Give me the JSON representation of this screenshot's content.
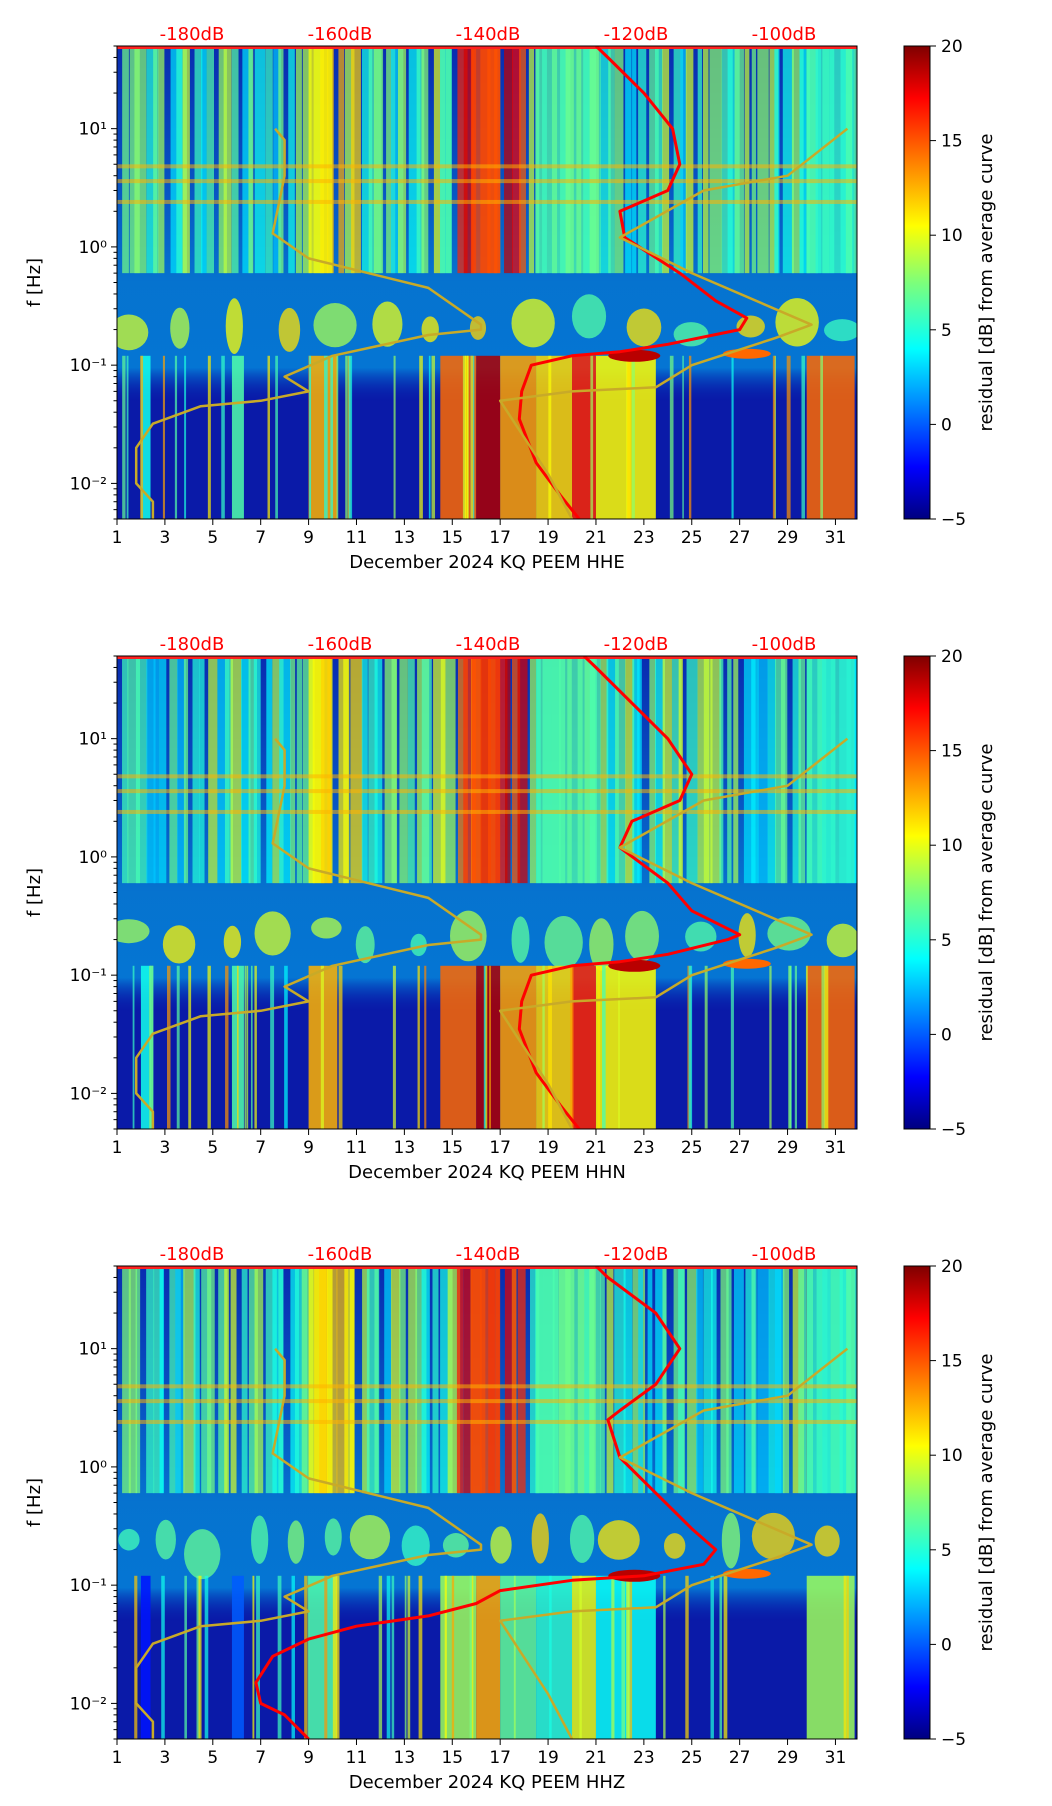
{
  "chart_data": [
    {
      "type": "heatmap",
      "xlabel": "December 2024 KQ PEEM  HHE",
      "ylabel": "f [Hz]",
      "x_ticks": [
        "1",
        "3",
        "5",
        "7",
        "9",
        "11",
        "13",
        "15",
        "17",
        "19",
        "21",
        "23",
        "25",
        "27",
        "29",
        "31"
      ],
      "x_range": [
        1,
        31.9
      ],
      "y_scale": "log",
      "y_range": [
        0.005,
        50
      ],
      "y_ticks": [
        {
          "value": 0.01,
          "label": "10⁻²"
        },
        {
          "value": 0.1,
          "label": "10⁻¹"
        },
        {
          "value": 1,
          "label": "10⁰"
        },
        {
          "value": 10,
          "label": "10¹"
        }
      ],
      "top_axis_labels": [
        "-180dB",
        "-160dB",
        "-140dB",
        "-120dB",
        "-100dB"
      ],
      "top_axis_color": "#ff0000",
      "colorbar": {
        "label": "residual [dB] from average curve",
        "range": [
          -5,
          20
        ],
        "ticks": [
          "−5",
          "0",
          "5",
          "10",
          "15",
          "20"
        ],
        "colormap": "jet"
      },
      "series": [
        {
          "color": "#ff0000",
          "points": [
            [
              20.3,
              0.005
            ],
            [
              19.5,
              0.008
            ],
            [
              18.5,
              0.015
            ],
            [
              17.8,
              0.035
            ],
            [
              17.9,
              0.06
            ],
            [
              18.3,
              0.1
            ],
            [
              20,
              0.12
            ],
            [
              22,
              0.13
            ],
            [
              24,
              0.15
            ],
            [
              27,
              0.2
            ],
            [
              27.3,
              0.25
            ],
            [
              26,
              0.35
            ],
            [
              24.5,
              0.6
            ],
            [
              22.2,
              1.2
            ],
            [
              22,
              2
            ],
            [
              24,
              3
            ],
            [
              24.5,
              5
            ],
            [
              24.2,
              10
            ],
            [
              23,
              20
            ],
            [
              21.5,
              40
            ],
            [
              21,
              50
            ]
          ]
        },
        {
          "color": "#c8aa28",
          "points": [
            [
              2.5,
              0.005
            ],
            [
              2.5,
              0.007
            ],
            [
              1.8,
              0.01
            ],
            [
              1.8,
              0.02
            ],
            [
              2.5,
              0.032
            ],
            [
              4.5,
              0.045
            ],
            [
              7,
              0.05
            ],
            [
              9,
              0.06
            ],
            [
              8,
              0.08
            ],
            [
              10,
              0.12
            ],
            [
              14,
              0.18
            ],
            [
              16.2,
              0.2
            ],
            [
              16.2,
              0.22
            ],
            [
              14,
              0.45
            ],
            [
              9,
              0.8
            ],
            [
              7.5,
              1.3
            ],
            [
              8,
              4
            ],
            [
              8,
              8
            ],
            [
              7.6,
              10
            ]
          ]
        },
        {
          "color": "#c8aa28",
          "points": [
            [
              20,
              0.005
            ],
            [
              19,
              0.012
            ],
            [
              17.5,
              0.035
            ],
            [
              17,
              0.05
            ],
            [
              20,
              0.06
            ],
            [
              23.5,
              0.065
            ],
            [
              25,
              0.1
            ],
            [
              28.5,
              0.17
            ],
            [
              30,
              0.22
            ],
            [
              25,
              0.6
            ],
            [
              22,
              1.2
            ],
            [
              25.5,
              3
            ],
            [
              29,
              4
            ],
            [
              31.5,
              10
            ]
          ]
        }
      ]
    },
    {
      "type": "heatmap",
      "xlabel": "December 2024 KQ PEEM  HHN",
      "ylabel": "f [Hz]",
      "x_ticks": [
        "1",
        "3",
        "5",
        "7",
        "9",
        "11",
        "13",
        "15",
        "17",
        "19",
        "21",
        "23",
        "25",
        "27",
        "29",
        "31"
      ],
      "x_range": [
        1,
        31.9
      ],
      "y_scale": "log",
      "y_range": [
        0.005,
        50
      ],
      "y_ticks": [
        {
          "value": 0.01,
          "label": "10⁻²"
        },
        {
          "value": 0.1,
          "label": "10⁻¹"
        },
        {
          "value": 1,
          "label": "10⁰"
        },
        {
          "value": 10,
          "label": "10¹"
        }
      ],
      "top_axis_labels": [
        "-180dB",
        "-160dB",
        "-140dB",
        "-120dB",
        "-100dB"
      ],
      "top_axis_color": "#ff0000",
      "colorbar": {
        "label": "residual [dB] from average curve",
        "range": [
          -5,
          20
        ],
        "ticks": [
          "−5",
          "0",
          "5",
          "10",
          "15",
          "20"
        ],
        "colormap": "jet"
      },
      "series": [
        {
          "color": "#ff0000",
          "points": [
            [
              20.3,
              0.005
            ],
            [
              19.5,
              0.008
            ],
            [
              18.5,
              0.015
            ],
            [
              17.8,
              0.035
            ],
            [
              17.9,
              0.06
            ],
            [
              18.3,
              0.1
            ],
            [
              20,
              0.12
            ],
            [
              22,
              0.13
            ],
            [
              24,
              0.15
            ],
            [
              26.5,
              0.2
            ],
            [
              27,
              0.22
            ],
            [
              25,
              0.35
            ],
            [
              24,
              0.6
            ],
            [
              22,
              1.2
            ],
            [
              22.5,
              2
            ],
            [
              24.5,
              3
            ],
            [
              25,
              5
            ],
            [
              24,
              10
            ],
            [
              22.5,
              20
            ],
            [
              21,
              40
            ],
            [
              20.5,
              50
            ]
          ]
        },
        {
          "color": "#c8aa28",
          "points": [
            [
              2.5,
              0.005
            ],
            [
              2.5,
              0.007
            ],
            [
              1.8,
              0.01
            ],
            [
              1.8,
              0.02
            ],
            [
              2.5,
              0.032
            ],
            [
              4.5,
              0.045
            ],
            [
              7,
              0.05
            ],
            [
              9,
              0.06
            ],
            [
              8,
              0.08
            ],
            [
              10,
              0.12
            ],
            [
              14,
              0.18
            ],
            [
              16.2,
              0.2
            ],
            [
              16.2,
              0.22
            ],
            [
              14,
              0.45
            ],
            [
              9,
              0.8
            ],
            [
              7.5,
              1.3
            ],
            [
              8,
              4
            ],
            [
              8,
              8
            ],
            [
              7.6,
              10
            ]
          ]
        },
        {
          "color": "#c8aa28",
          "points": [
            [
              20,
              0.005
            ],
            [
              19,
              0.012
            ],
            [
              17.5,
              0.035
            ],
            [
              17,
              0.05
            ],
            [
              20,
              0.06
            ],
            [
              23.5,
              0.065
            ],
            [
              25,
              0.1
            ],
            [
              28.5,
              0.17
            ],
            [
              30,
              0.22
            ],
            [
              25,
              0.6
            ],
            [
              22,
              1.2
            ],
            [
              25.5,
              3
            ],
            [
              29,
              4
            ],
            [
              31.5,
              10
            ]
          ]
        }
      ]
    },
    {
      "type": "heatmap",
      "xlabel": "December 2024 KQ PEEM  HHZ",
      "ylabel": "f [Hz]",
      "x_ticks": [
        "1",
        "3",
        "5",
        "7",
        "9",
        "11",
        "13",
        "15",
        "17",
        "19",
        "21",
        "23",
        "25",
        "27",
        "29",
        "31"
      ],
      "x_range": [
        1,
        31.9
      ],
      "y_scale": "log",
      "y_range": [
        0.005,
        50
      ],
      "y_ticks": [
        {
          "value": 0.01,
          "label": "10⁻²"
        },
        {
          "value": 0.1,
          "label": "10⁻¹"
        },
        {
          "value": 1,
          "label": "10⁰"
        },
        {
          "value": 10,
          "label": "10¹"
        }
      ],
      "top_axis_labels": [
        "-180dB",
        "-160dB",
        "-140dB",
        "-120dB",
        "-100dB"
      ],
      "top_axis_color": "#ff0000",
      "colorbar": {
        "label": "residual [dB] from average curve",
        "range": [
          -5,
          20
        ],
        "ticks": [
          "−5",
          "0",
          "5",
          "10",
          "15",
          "20"
        ],
        "colormap": "jet"
      },
      "series": [
        {
          "color": "#ff0000",
          "points": [
            [
              9,
              0.005
            ],
            [
              8,
              0.008
            ],
            [
              7,
              0.01
            ],
            [
              6.8,
              0.015
            ],
            [
              7.5,
              0.025
            ],
            [
              9,
              0.035
            ],
            [
              11,
              0.045
            ],
            [
              14,
              0.055
            ],
            [
              16,
              0.07
            ],
            [
              17,
              0.09
            ],
            [
              20,
              0.11
            ],
            [
              23,
              0.12
            ],
            [
              25.5,
              0.15
            ],
            [
              26,
              0.2
            ],
            [
              25,
              0.3
            ],
            [
              23.5,
              0.6
            ],
            [
              22,
              1.2
            ],
            [
              21.5,
              2.5
            ],
            [
              22,
              3
            ],
            [
              23.5,
              5
            ],
            [
              24.5,
              10
            ],
            [
              23.5,
              20
            ],
            [
              21.5,
              40
            ],
            [
              21,
              50
            ]
          ]
        },
        {
          "color": "#c8aa28",
          "points": [
            [
              2.5,
              0.005
            ],
            [
              2.5,
              0.007
            ],
            [
              1.8,
              0.01
            ],
            [
              1.8,
              0.02
            ],
            [
              2.5,
              0.032
            ],
            [
              4.5,
              0.045
            ],
            [
              7,
              0.05
            ],
            [
              9,
              0.06
            ],
            [
              8,
              0.08
            ],
            [
              10,
              0.12
            ],
            [
              14,
              0.18
            ],
            [
              16.2,
              0.2
            ],
            [
              16.2,
              0.22
            ],
            [
              14,
              0.45
            ],
            [
              9,
              0.8
            ],
            [
              7.5,
              1.3
            ],
            [
              8,
              4
            ],
            [
              8,
              8
            ],
            [
              7.6,
              10
            ]
          ]
        },
        {
          "color": "#c8aa28",
          "points": [
            [
              20,
              0.005
            ],
            [
              19,
              0.012
            ],
            [
              17.5,
              0.035
            ],
            [
              17,
              0.05
            ],
            [
              20,
              0.06
            ],
            [
              23.5,
              0.065
            ],
            [
              25,
              0.1
            ],
            [
              28.5,
              0.17
            ],
            [
              30,
              0.22
            ],
            [
              25,
              0.6
            ],
            [
              22,
              1.2
            ],
            [
              25.5,
              3
            ],
            [
              29,
              4
            ],
            [
              31.5,
              10
            ]
          ]
        }
      ]
    }
  ]
}
